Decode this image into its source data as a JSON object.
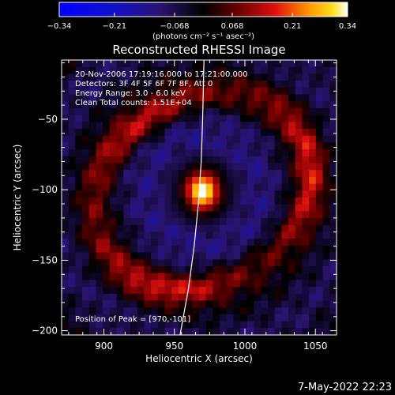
{
  "chart_data": {
    "type": "heatmap",
    "title": "Reconstructed RHESSI Image",
    "xlabel": "Heliocentric X (arcsec)",
    "ylabel": "Heliocentric Y (arcsec)",
    "xlim": [
      870,
      1065
    ],
    "ylim": [
      -203,
      -8
    ],
    "x_ticks": [
      900,
      950,
      1000,
      1050
    ],
    "y_ticks": [
      -50,
      -100,
      -150,
      -200
    ],
    "colorbar": {
      "range": [
        -0.34,
        0.34
      ],
      "ticks": [
        -0.34,
        -0.21,
        -0.068,
        0.068,
        0.21,
        0.34
      ],
      "tick_labels": [
        "−0.34",
        "−0.21",
        "−0.068",
        "0.068",
        "0.21",
        "0.34"
      ],
      "label": "(photons cm⁻² s⁻¹ asec⁻²)"
    },
    "annotations": [
      "20-Nov-2006 17:19:16.000 to 17:21:00.000",
      "Detectors: 3F 4F 5F 6F 7F 8F, Att 0",
      "Energy Range: 3.0 - 6.0 keV",
      "Clean    Total counts: 1.51E+04"
    ],
    "peak_label": "Position of Peak = [970,-101]",
    "peak": {
      "x": 970,
      "y": -101,
      "value": 0.34
    },
    "limb": [
      [
        954,
        -203
      ],
      [
        960,
        -170
      ],
      [
        964,
        -140
      ],
      [
        967,
        -110
      ],
      [
        969,
        -80
      ],
      [
        970,
        -50
      ],
      [
        971,
        -8
      ]
    ]
  },
  "timestamp": "7-May-2022 22:23"
}
